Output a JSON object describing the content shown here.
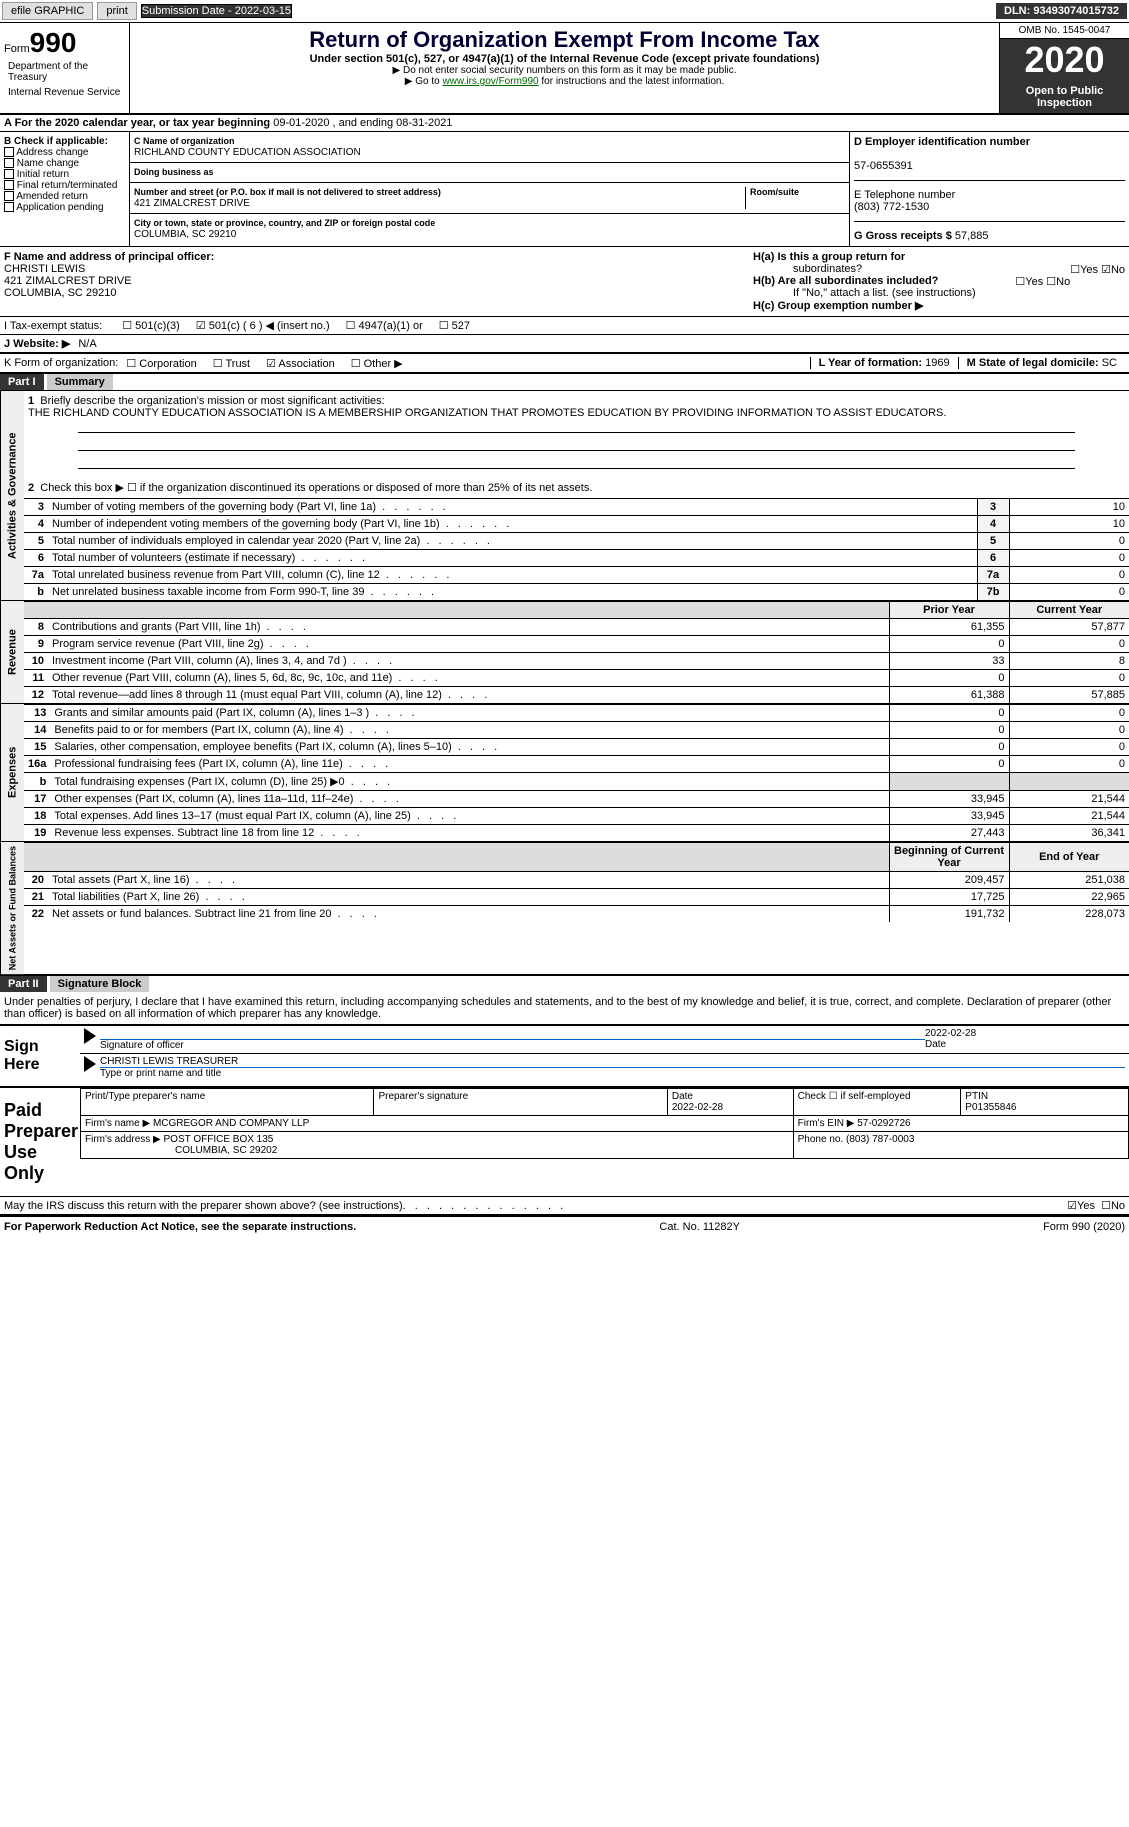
{
  "topbar": {
    "efile": "efile GRAPHIC",
    "print": "print",
    "subdate_label": "Submission Date - ",
    "subdate": "2022-03-15",
    "dln_label": "DLN: ",
    "dln": "93493074015732"
  },
  "header": {
    "form_prefix": "Form",
    "form_number": "990",
    "title": "Return of Organization Exempt From Income Tax",
    "subtitle": "Under section 501(c), 527, or 4947(a)(1) of the Internal Revenue Code (except private foundations)",
    "note1": "▶ Do not enter social security numbers on this form as it may be made public.",
    "note2_prefix": "▶ Go to ",
    "note2_link": "www.irs.gov/Form990",
    "note2_suffix": " for instructions and the latest information.",
    "omb": "OMB No. 1545-0047",
    "year": "2020",
    "inspection": "Open to Public Inspection",
    "dept1": "Department of the Treasury",
    "dept2": "Internal Revenue Service"
  },
  "lineA": {
    "prefix": "A For the 2020 calendar year, or tax year beginning ",
    "begin": "09-01-2020",
    "mid": " , and ending ",
    "end": "08-31-2021"
  },
  "boxB": {
    "label": "B Check if applicable:",
    "opts": [
      "Address change",
      "Name change",
      "Initial return",
      "Final return/terminated",
      "Amended return",
      "Application pending"
    ]
  },
  "boxC": {
    "name_label": "C Name of organization",
    "name": "RICHLAND COUNTY EDUCATION ASSOCIATION",
    "dba_label": "Doing business as",
    "addr_label": "Number and street (or P.O. box if mail is not delivered to street address)",
    "room_label": "Room/suite",
    "addr": "421 ZIMALCREST DRIVE",
    "city_label": "City or town, state or province, country, and ZIP or foreign postal code",
    "city": "COLUMBIA, SC  29210"
  },
  "boxD": {
    "label": "D Employer identification number",
    "ein": "57-0655391"
  },
  "boxE": {
    "label": "E Telephone number",
    "phone": "(803) 772-1530"
  },
  "boxG": {
    "label": "G Gross receipts $ ",
    "amount": "57,885"
  },
  "boxF": {
    "label": "F Name and address of principal officer:",
    "name": "CHRISTI LEWIS",
    "addr1": "421 ZIMALCREST DRIVE",
    "addr2": "COLUMBIA, SC  29210"
  },
  "boxH": {
    "ha_label": "H(a)  Is this a group return for",
    "ha_sub": "subordinates?",
    "hb_label": "H(b)  Are all subordinates included?",
    "hb_note": "If \"No,\" attach a list. (see instructions)",
    "hc_label": "H(c)  Group exemption number ▶",
    "yes": "Yes",
    "no": "No"
  },
  "lineI": {
    "label": "I  Tax-exempt status:",
    "opts": [
      "501(c)(3)",
      "501(c) ( 6 ) ◀ (insert no.)",
      "4947(a)(1) or",
      "527"
    ],
    "checked_index": 1
  },
  "lineJ": {
    "label": "J  Website: ▶",
    "value": "N/A"
  },
  "lineK": {
    "label": "K Form of organization:",
    "opts": [
      "Corporation",
      "Trust",
      "Association",
      "Other ▶"
    ],
    "checked_index": 2
  },
  "lineL": {
    "label": "L Year of formation: ",
    "value": "1969"
  },
  "lineM": {
    "label": "M State of legal domicile: ",
    "value": "SC"
  },
  "part1": {
    "hdr": "Part I",
    "title": "Summary",
    "q1_label": "Briefly describe the organization's mission or most significant activities:",
    "q1_text": "THE RICHLAND COUNTY EDUCATION ASSOCIATION IS A MEMBERSHIP ORGANIZATION THAT PROMOTES EDUCATION BY PROVIDING INFORMATION TO ASSIST EDUCATORS.",
    "q2": "Check this box ▶ ☐ if the organization discontinued its operations or disposed of more than 25% of its net assets.",
    "governance_rows": [
      {
        "n": "3",
        "lbl": "Number of voting members of the governing body (Part VI, line 1a)",
        "box": "3",
        "val": "10"
      },
      {
        "n": "4",
        "lbl": "Number of independent voting members of the governing body (Part VI, line 1b)",
        "box": "4",
        "val": "10"
      },
      {
        "n": "5",
        "lbl": "Total number of individuals employed in calendar year 2020 (Part V, line 2a)",
        "box": "5",
        "val": "0"
      },
      {
        "n": "6",
        "lbl": "Total number of volunteers (estimate if necessary)",
        "box": "6",
        "val": "0"
      },
      {
        "n": "7a",
        "lbl": "Total unrelated business revenue from Part VIII, column (C), line 12",
        "box": "7a",
        "val": "0"
      },
      {
        "n": "b",
        "lbl": "Net unrelated business taxable income from Form 990-T, line 39",
        "box": "7b",
        "val": "0"
      }
    ],
    "col_prior": "Prior Year",
    "col_current": "Current Year",
    "col_begin": "Beginning of Current Year",
    "col_end": "End of Year",
    "revenue_rows": [
      {
        "n": "8",
        "lbl": "Contributions and grants (Part VIII, line 1h)",
        "prior": "61,355",
        "curr": "57,877"
      },
      {
        "n": "9",
        "lbl": "Program service revenue (Part VIII, line 2g)",
        "prior": "0",
        "curr": "0"
      },
      {
        "n": "10",
        "lbl": "Investment income (Part VIII, column (A), lines 3, 4, and 7d )",
        "prior": "33",
        "curr": "8"
      },
      {
        "n": "11",
        "lbl": "Other revenue (Part VIII, column (A), lines 5, 6d, 8c, 9c, 10c, and 11e)",
        "prior": "0",
        "curr": "0"
      },
      {
        "n": "12",
        "lbl": "Total revenue—add lines 8 through 11 (must equal Part VIII, column (A), line 12)",
        "prior": "61,388",
        "curr": "57,885"
      }
    ],
    "expense_rows": [
      {
        "n": "13",
        "lbl": "Grants and similar amounts paid (Part IX, column (A), lines 1–3 )",
        "prior": "0",
        "curr": "0"
      },
      {
        "n": "14",
        "lbl": "Benefits paid to or for members (Part IX, column (A), line 4)",
        "prior": "0",
        "curr": "0"
      },
      {
        "n": "15",
        "lbl": "Salaries, other compensation, employee benefits (Part IX, column (A), lines 5–10)",
        "prior": "0",
        "curr": "0"
      },
      {
        "n": "16a",
        "lbl": "Professional fundraising fees (Part IX, column (A), line 11e)",
        "prior": "0",
        "curr": "0"
      },
      {
        "n": "b",
        "lbl": "Total fundraising expenses (Part IX, column (D), line 25) ▶0",
        "prior": "",
        "curr": "",
        "shade": true
      },
      {
        "n": "17",
        "lbl": "Other expenses (Part IX, column (A), lines 11a–11d, 11f–24e)",
        "prior": "33,945",
        "curr": "21,544"
      },
      {
        "n": "18",
        "lbl": "Total expenses. Add lines 13–17 (must equal Part IX, column (A), line 25)",
        "prior": "33,945",
        "curr": "21,544"
      },
      {
        "n": "19",
        "lbl": "Revenue less expenses. Subtract line 18 from line 12",
        "prior": "27,443",
        "curr": "36,341"
      }
    ],
    "netassets_rows": [
      {
        "n": "20",
        "lbl": "Total assets (Part X, line 16)",
        "prior": "209,457",
        "curr": "251,038"
      },
      {
        "n": "21",
        "lbl": "Total liabilities (Part X, line 26)",
        "prior": "17,725",
        "curr": "22,965"
      },
      {
        "n": "22",
        "lbl": "Net assets or fund balances. Subtract line 21 from line 20",
        "prior": "191,732",
        "curr": "228,073"
      }
    ],
    "vlabels": {
      "gov": "Activities & Governance",
      "rev": "Revenue",
      "exp": "Expenses",
      "net": "Net Assets or Fund Balances"
    }
  },
  "part2": {
    "hdr": "Part II",
    "title": "Signature Block",
    "penalties": "Under penalties of perjury, I declare that I have examined this return, including accompanying schedules and statements, and to the best of my knowledge and belief, it is true, correct, and complete. Declaration of preparer (other than officer) is based on all information of which preparer has any knowledge.",
    "sign_here": "Sign Here",
    "sig_officer": "Signature of officer",
    "sig_date": "Date",
    "sig_date_val": "2022-02-28",
    "sig_name": "CHRISTI LEWIS  TREASURER",
    "sig_type": "Type or print name and title",
    "paid_hdr": "Paid Preparer Use Only",
    "prep": {
      "name_lbl": "Print/Type preparer's name",
      "sig_lbl": "Preparer's signature",
      "date_lbl": "Date",
      "date_val": "2022-02-28",
      "check_lbl": "Check ☐ if self-employed",
      "ptin_lbl": "PTIN",
      "ptin": "P01355846",
      "firm_name_lbl": "Firm's name    ▶",
      "firm_name": "MCGREGOR AND COMPANY LLP",
      "firm_ein_lbl": "Firm's EIN ▶",
      "firm_ein": "57-0292726",
      "firm_addr_lbl": "Firm's address ▶",
      "firm_addr": "POST OFFICE BOX 135",
      "firm_city": "COLUMBIA, SC  29202",
      "phone_lbl": "Phone no. ",
      "phone": "(803) 787-0003"
    },
    "discuss": "May the IRS discuss this return with the preparer shown above? (see instructions)",
    "yes": "Yes",
    "no": "No"
  },
  "footer": {
    "left": "For Paperwork Reduction Act Notice, see the separate instructions.",
    "center": "Cat. No. 11282Y",
    "right": "Form 990 (2020)"
  }
}
